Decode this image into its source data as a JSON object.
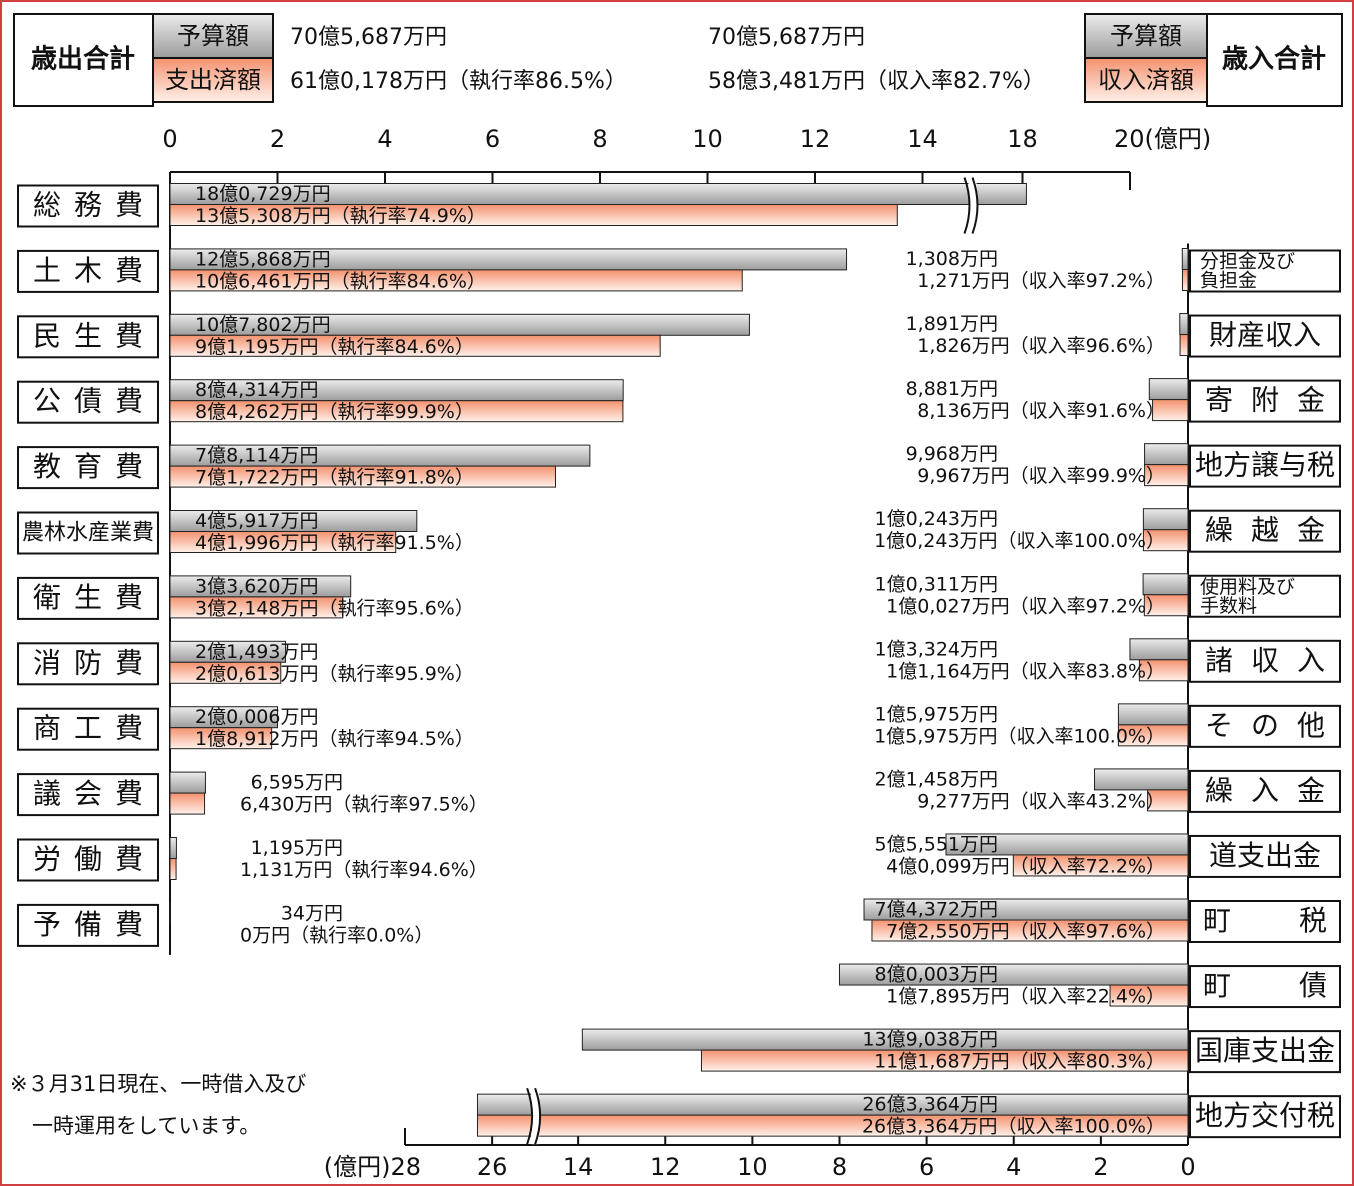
{
  "chart_data": [
    {
      "type": "bar",
      "title": "歳出合計",
      "totals": [
        "70億5,687万円",
        "61億0,178万円（執行率86.5%）"
      ],
      "categories": [
        "総務費",
        "土木費",
        "民生費",
        "公債費",
        "教育費",
        "農林水産業費",
        "衛生費",
        "消防費",
        "商工費",
        "議会費",
        "労働費",
        "予備費"
      ],
      "series": [
        {
          "name": "予算額",
          "color": "#9c9c9c",
          "values": [
            18.0729,
            12.5868,
            10.7802,
            8.4314,
            7.8114,
            4.5917,
            3.362,
            2.1493,
            2.0006,
            0.6595,
            0.1195,
            0.0034
          ],
          "value_labels": [
            "18億0,729万円",
            "12億5,868万円",
            "10億7,802万円",
            "8億4,314万円",
            "7億8,114万円",
            "4億5,917万円",
            "3億3,620万円",
            "2億1,493万円",
            "2億0,006万円",
            "6,595万円",
            "1,195万円",
            "34万円"
          ]
        },
        {
          "name": "支出済額",
          "color": "#f4916e",
          "values": [
            13.5308,
            10.6461,
            9.1195,
            8.4262,
            7.1722,
            4.1996,
            3.2148,
            2.0613,
            1.8912,
            0.643,
            0.1131,
            0
          ],
          "value_labels": [
            "13億5,308万円（執行率74.9%）",
            "10億6,461万円（執行率84.6%）",
            "9億1,195万円（執行率84.6%）",
            "8億4,262万円（執行率99.9%）",
            "7億1,722万円（執行率91.8%）",
            "4億1,996万円（執行率91.5%）",
            "3億2,148万円（執行率95.6%）",
            "2億0,613万円（執行率95.9%）",
            "1億8,912万円（執行率94.5%）",
            "6,430万円（執行率97.5%）",
            "1,131万円（執行率94.6%）",
            "0万円（執行率0.0%）"
          ]
        }
      ],
      "xlim": [
        0,
        20
      ],
      "xticks": [
        0,
        2,
        4,
        6,
        8,
        10,
        12,
        14,
        18,
        {
          "value": 20,
          "label": "20(億円)"
        }
      ],
      "axis_break": [
        14,
        18
      ]
    },
    {
      "type": "bar",
      "title": "歳入合計",
      "totals": [
        "70億5,687万円",
        "58億3,481万円（収入率82.7%）"
      ],
      "categories": [
        "分担金及び負担金",
        "財産収入",
        "寄附金",
        "地方譲与税",
        "繰越金",
        "使用料及び手数料",
        "諸収入",
        "その他",
        "繰入金",
        "道支出金",
        "町税",
        "町債",
        "国庫支出金",
        "地方交付税"
      ],
      "series": [
        {
          "name": "予算額",
          "color": "#9c9c9c",
          "values": [
            0.1308,
            0.1891,
            0.8881,
            0.9968,
            1.0243,
            1.0311,
            1.3324,
            1.5975,
            2.1458,
            5.5551,
            7.4372,
            8.0003,
            13.9038,
            26.3364
          ],
          "value_labels": [
            "1,308万円",
            "1,891万円",
            "8,881万円",
            "9,968万円",
            "1億0,243万円",
            "1億0,311万円",
            "1億3,324万円",
            "1億5,975万円",
            "2億1,458万円",
            "5億5,551万円",
            "7億4,372万円",
            "8億0,003万円",
            "13億9,038万円",
            "26億3,364万円"
          ]
        },
        {
          "name": "収入済額",
          "color": "#f4916e",
          "values": [
            0.1271,
            0.1826,
            0.8136,
            0.9967,
            1.0243,
            1.0027,
            1.1164,
            1.5975,
            0.9277,
            4.0099,
            7.255,
            1.7895,
            11.1687,
            26.3364
          ],
          "value_labels": [
            "1,271万円（収入率97.2%）",
            "1,826万円（収入率96.6%）",
            "8,136万円（収入率91.6%）",
            "9,967万円（収入率99.9%）",
            "1億0,243万円（収入率100.0%）",
            "1億0,027万円（収入率97.2%）",
            "1億1,164万円（収入率83.8%）",
            "1億5,975万円（収入率100.0%）",
            "9,277万円（収入率43.2%）",
            "4億0,099万円（収入率72.2%）",
            "7億2,550万円（収入率97.6%）",
            "1億7,895万円（収入率22.4%）",
            "11億1,687万円（収入率80.3%）",
            "26億3,364万円（収入率100.0%）"
          ]
        }
      ],
      "xlim": [
        0,
        28
      ],
      "xticks": [
        0,
        2,
        4,
        6,
        8,
        10,
        12,
        14,
        26,
        {
          "value": 28,
          "label": "(億円)28"
        }
      ],
      "axis_break": [
        14,
        26
      ]
    }
  ],
  "note": [
    "※３月31日現在、一時借入及び",
    "一時運用をしています。"
  ]
}
